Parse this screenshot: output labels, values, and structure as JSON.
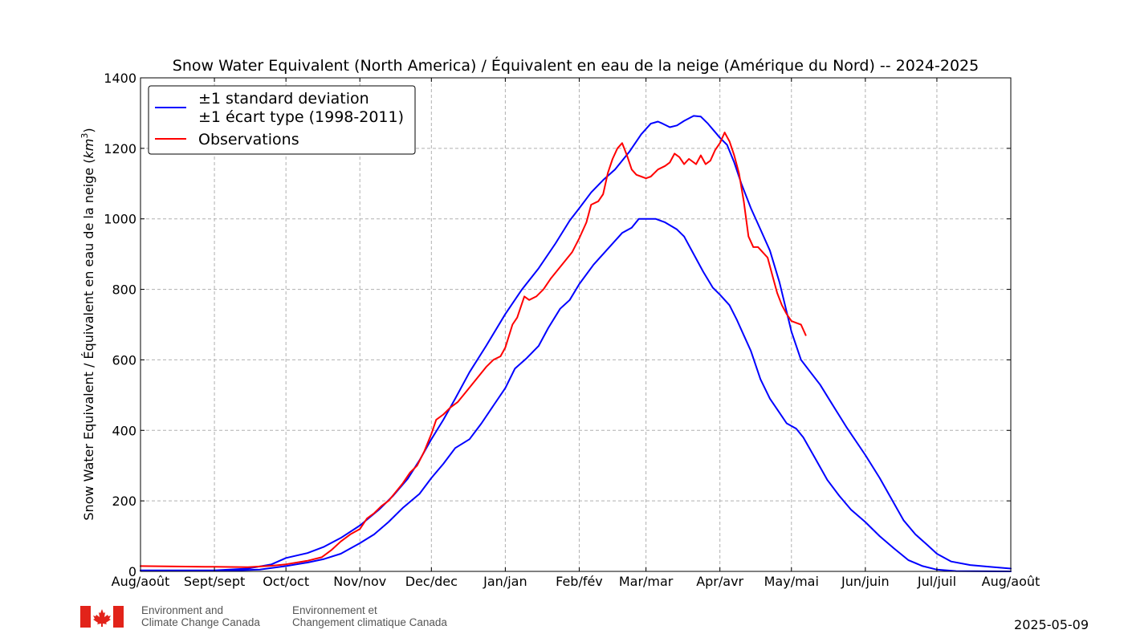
{
  "chart_data": {
    "type": "line",
    "title": "Snow Water Equivalent (North America) / Équivalent en eau de la neige (Amérique du Nord) -- 2024-2025",
    "ylabel_main": "Snow Water Equivalent / Équivalent en eau de la neige (",
    "ylabel_unit": "km",
    "ylabel_exp": "3",
    "ylabel_close": ")",
    "ylim": [
      0,
      1400
    ],
    "yticks": [
      0,
      200,
      400,
      600,
      800,
      1000,
      1200,
      1400
    ],
    "xlim": [
      0,
      365
    ],
    "xticks": [
      {
        "x": 0,
        "label": "Aug/août"
      },
      {
        "x": 31,
        "label": "Sept/sept"
      },
      {
        "x": 61,
        "label": "Oct/oct"
      },
      {
        "x": 92,
        "label": "Nov/nov"
      },
      {
        "x": 122,
        "label": "Dec/dec"
      },
      {
        "x": 153,
        "label": "Jan/jan"
      },
      {
        "x": 184,
        "label": "Feb/fév"
      },
      {
        "x": 212,
        "label": "Mar/mar"
      },
      {
        "x": 243,
        "label": "Apr/avr"
      },
      {
        "x": 273,
        "label": "May/mai"
      },
      {
        "x": 304,
        "label": "Jun/juin"
      },
      {
        "x": 334,
        "label": "Jul/juil"
      },
      {
        "x": 365,
        "label": "Aug/août"
      }
    ],
    "grid": true,
    "legend": {
      "position": "top-left",
      "entries": [
        {
          "label_line1": "±1 standard deviation",
          "label_line2": "±1 écart type (1998-2011)",
          "color": "#0000ff"
        },
        {
          "label_line1": "Observations",
          "color": "#ff0000"
        }
      ]
    },
    "series": [
      {
        "name": "±1 standard deviation upper",
        "color": "#0000ff",
        "points": [
          [
            0,
            3
          ],
          [
            31,
            3
          ],
          [
            45,
            8
          ],
          [
            55,
            20
          ],
          [
            61,
            38
          ],
          [
            70,
            52
          ],
          [
            77,
            70
          ],
          [
            84,
            95
          ],
          [
            92,
            130
          ],
          [
            100,
            175
          ],
          [
            106,
            215
          ],
          [
            112,
            262
          ],
          [
            117,
            315
          ],
          [
            122,
            375
          ],
          [
            127,
            430
          ],
          [
            132,
            490
          ],
          [
            138,
            565
          ],
          [
            145,
            640
          ],
          [
            153,
            730
          ],
          [
            160,
            800
          ],
          [
            167,
            860
          ],
          [
            174,
            930
          ],
          [
            180,
            995
          ],
          [
            184,
            1030
          ],
          [
            189,
            1075
          ],
          [
            194,
            1110
          ],
          [
            199,
            1140
          ],
          [
            205,
            1190
          ],
          [
            210,
            1240
          ],
          [
            214,
            1270
          ],
          [
            217,
            1276
          ],
          [
            219,
            1270
          ],
          [
            222,
            1260
          ],
          [
            225,
            1265
          ],
          [
            228,
            1278
          ],
          [
            232,
            1292
          ],
          [
            235,
            1290
          ],
          [
            238,
            1270
          ],
          [
            243,
            1230
          ],
          [
            246,
            1210
          ],
          [
            249,
            1160
          ],
          [
            252,
            1100
          ],
          [
            256,
            1030
          ],
          [
            260,
            970
          ],
          [
            264,
            910
          ],
          [
            268,
            820
          ],
          [
            273,
            680
          ],
          [
            277,
            600
          ],
          [
            281,
            565
          ],
          [
            285,
            530
          ],
          [
            290,
            475
          ],
          [
            296,
            410
          ],
          [
            304,
            330
          ],
          [
            310,
            265
          ],
          [
            315,
            205
          ],
          [
            320,
            145
          ],
          [
            325,
            105
          ],
          [
            330,
            75
          ],
          [
            334,
            50
          ],
          [
            340,
            28
          ],
          [
            348,
            18
          ],
          [
            356,
            13
          ],
          [
            365,
            8
          ]
        ]
      },
      {
        "name": "±1 standard deviation lower",
        "color": "#0000ff",
        "points": [
          [
            0,
            2
          ],
          [
            31,
            2
          ],
          [
            40,
            3
          ],
          [
            50,
            5
          ],
          [
            61,
            15
          ],
          [
            70,
            25
          ],
          [
            77,
            35
          ],
          [
            84,
            50
          ],
          [
            92,
            80
          ],
          [
            98,
            105
          ],
          [
            104,
            140
          ],
          [
            110,
            180
          ],
          [
            117,
            220
          ],
          [
            122,
            265
          ],
          [
            127,
            305
          ],
          [
            132,
            350
          ],
          [
            138,
            375
          ],
          [
            143,
            420
          ],
          [
            148,
            470
          ],
          [
            153,
            520
          ],
          [
            157,
            575
          ],
          [
            162,
            605
          ],
          [
            167,
            640
          ],
          [
            171,
            690
          ],
          [
            176,
            745
          ],
          [
            180,
            770
          ],
          [
            184,
            815
          ],
          [
            190,
            870
          ],
          [
            196,
            915
          ],
          [
            202,
            960
          ],
          [
            206,
            975
          ],
          [
            209,
            1000
          ],
          [
            212,
            1000
          ],
          [
            216,
            1000
          ],
          [
            220,
            990
          ],
          [
            225,
            970
          ],
          [
            228,
            950
          ],
          [
            232,
            900
          ],
          [
            236,
            850
          ],
          [
            240,
            805
          ],
          [
            243,
            785
          ],
          [
            247,
            755
          ],
          [
            250,
            715
          ],
          [
            253,
            670
          ],
          [
            256,
            625
          ],
          [
            260,
            545
          ],
          [
            264,
            490
          ],
          [
            268,
            450
          ],
          [
            271,
            420
          ],
          [
            275,
            405
          ],
          [
            278,
            380
          ],
          [
            283,
            320
          ],
          [
            288,
            260
          ],
          [
            293,
            215
          ],
          [
            298,
            175
          ],
          [
            304,
            140
          ],
          [
            310,
            100
          ],
          [
            316,
            65
          ],
          [
            322,
            32
          ],
          [
            328,
            15
          ],
          [
            334,
            5
          ],
          [
            342,
            1
          ],
          [
            365,
            0
          ]
        ]
      },
      {
        "name": "Observations",
        "color": "#ff0000",
        "points": [
          [
            0,
            15
          ],
          [
            15,
            14
          ],
          [
            31,
            13
          ],
          [
            45,
            12
          ],
          [
            55,
            16
          ],
          [
            61,
            20
          ],
          [
            70,
            30
          ],
          [
            76,
            40
          ],
          [
            80,
            60
          ],
          [
            84,
            85
          ],
          [
            88,
            105
          ],
          [
            92,
            120
          ],
          [
            95,
            150
          ],
          [
            98,
            165
          ],
          [
            101,
            185
          ],
          [
            104,
            200
          ],
          [
            107,
            225
          ],
          [
            110,
            250
          ],
          [
            113,
            280
          ],
          [
            116,
            300
          ],
          [
            119,
            340
          ],
          [
            122,
            390
          ],
          [
            124,
            430
          ],
          [
            127,
            445
          ],
          [
            130,
            465
          ],
          [
            133,
            480
          ],
          [
            136,
            505
          ],
          [
            139,
            530
          ],
          [
            142,
            555
          ],
          [
            145,
            580
          ],
          [
            148,
            600
          ],
          [
            151,
            610
          ],
          [
            153,
            635
          ],
          [
            156,
            700
          ],
          [
            158,
            720
          ],
          [
            161,
            780
          ],
          [
            163,
            770
          ],
          [
            166,
            780
          ],
          [
            169,
            800
          ],
          [
            172,
            830
          ],
          [
            175,
            855
          ],
          [
            178,
            880
          ],
          [
            181,
            905
          ],
          [
            184,
            945
          ],
          [
            187,
            990
          ],
          [
            189,
            1040
          ],
          [
            192,
            1050
          ],
          [
            194,
            1070
          ],
          [
            196,
            1130
          ],
          [
            198,
            1170
          ],
          [
            200,
            1200
          ],
          [
            202,
            1215
          ],
          [
            204,
            1180
          ],
          [
            206,
            1140
          ],
          [
            208,
            1125
          ],
          [
            210,
            1120
          ],
          [
            212,
            1115
          ],
          [
            214,
            1120
          ],
          [
            217,
            1140
          ],
          [
            220,
            1150
          ],
          [
            222,
            1160
          ],
          [
            224,
            1185
          ],
          [
            226,
            1175
          ],
          [
            228,
            1155
          ],
          [
            230,
            1170
          ],
          [
            233,
            1155
          ],
          [
            235,
            1180
          ],
          [
            237,
            1155
          ],
          [
            239,
            1165
          ],
          [
            241,
            1195
          ],
          [
            243,
            1215
          ],
          [
            245,
            1245
          ],
          [
            247,
            1220
          ],
          [
            249,
            1180
          ],
          [
            251,
            1130
          ],
          [
            253,
            1050
          ],
          [
            255,
            950
          ],
          [
            257,
            920
          ],
          [
            259,
            920
          ],
          [
            261,
            905
          ],
          [
            263,
            890
          ],
          [
            265,
            840
          ],
          [
            267,
            790
          ],
          [
            269,
            755
          ],
          [
            271,
            730
          ],
          [
            273,
            710
          ],
          [
            275,
            705
          ],
          [
            277,
            700
          ],
          [
            279,
            670
          ]
        ]
      }
    ]
  },
  "footer": {
    "org_en_line1": "Environment and",
    "org_en_line2": "Climate Change Canada",
    "org_fr_line1": "Environnement et",
    "org_fr_line2": "Changement climatique Canada",
    "date": "2025-05-09"
  }
}
